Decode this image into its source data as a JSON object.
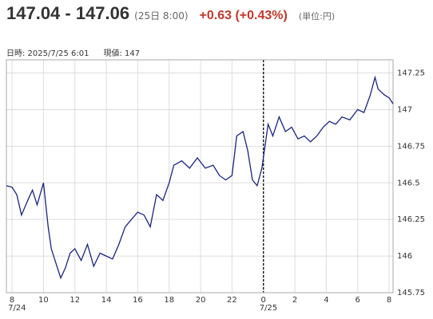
{
  "header": {
    "price": "147.04 - 147.06",
    "time": "(25日 8:00)",
    "change": "+0.63 (+0.43%)",
    "unit": "(単位:円)",
    "info_time": "日時: 2025/7/25 6:01",
    "info_value": "現値: 147"
  },
  "chart_data": {
    "type": "line",
    "xlim": [
      7.64,
      32.25
    ],
    "ylim": [
      145.75,
      147.34
    ],
    "xticks": [
      8,
      10,
      12,
      14,
      16,
      18,
      20,
      22,
      {
        "value": 24,
        "label": "0"
      },
      {
        "value": 26,
        "label": "2"
      },
      {
        "value": 28,
        "label": "4"
      },
      {
        "value": 30,
        "label": "6"
      },
      {
        "value": 32,
        "label": "8"
      }
    ],
    "date_labels": [
      {
        "value": 8,
        "label": "7/24"
      },
      {
        "value": 24,
        "label": "7/25"
      }
    ],
    "yticks": [
      145.75,
      146,
      146.25,
      146.5,
      146.75,
      147,
      147.25
    ],
    "grid": true,
    "series": [
      {
        "color": "#1a237e",
        "x": [
          7.64,
          8.0,
          8.3,
          8.6,
          9.0,
          9.3,
          9.6,
          10.0,
          10.3,
          10.5,
          10.8,
          11.1,
          11.4,
          11.7,
          12.0,
          12.4,
          12.8,
          13.2,
          13.6,
          14.0,
          14.4,
          14.8,
          15.2,
          15.6,
          16.0,
          16.4,
          16.8,
          17.2,
          17.6,
          18.0,
          18.3,
          18.8,
          19.3,
          19.8,
          20.3,
          20.8,
          21.2,
          21.6,
          22.0,
          22.3,
          22.7,
          23.0,
          23.3,
          23.6,
          23.9,
          24.1,
          24.3,
          24.6,
          25.0,
          25.4,
          25.8,
          26.2,
          26.6,
          27.0,
          27.4,
          27.8,
          28.2,
          28.6,
          29.0,
          29.5,
          30.0,
          30.4,
          30.8,
          31.1,
          31.3,
          31.7,
          32.0,
          32.25
        ],
        "values": [
          146.48,
          146.47,
          146.42,
          146.28,
          146.38,
          146.45,
          146.35,
          146.5,
          146.2,
          146.05,
          145.95,
          145.85,
          145.92,
          146.02,
          146.05,
          145.97,
          146.08,
          145.93,
          146.02,
          146.0,
          145.98,
          146.08,
          146.2,
          146.25,
          146.3,
          146.28,
          146.2,
          146.42,
          146.38,
          146.5,
          146.62,
          146.65,
          146.6,
          146.67,
          146.6,
          146.62,
          146.55,
          146.52,
          146.55,
          146.82,
          146.85,
          146.72,
          146.52,
          146.48,
          146.6,
          146.75,
          146.9,
          146.82,
          146.95,
          146.85,
          146.88,
          146.8,
          146.82,
          146.78,
          146.82,
          146.88,
          146.92,
          146.9,
          146.95,
          146.93,
          147.0,
          146.98,
          147.1,
          147.22,
          147.14,
          147.1,
          147.08,
          147.04
        ]
      }
    ]
  }
}
